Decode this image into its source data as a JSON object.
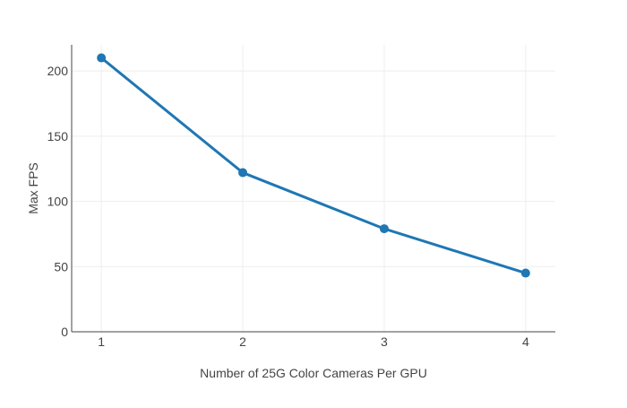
{
  "chart_data": {
    "type": "line",
    "title": "",
    "xlabel": "Number of 25G Color Cameras Per GPU",
    "ylabel": "Max FPS",
    "x": [
      1,
      2,
      3,
      4
    ],
    "series": [
      {
        "values": [
          210,
          122,
          79,
          45
        ]
      }
    ],
    "x_ticks": [
      "1",
      "2",
      "3",
      "4"
    ],
    "y_ticks": [
      "0",
      "50",
      "100",
      "150",
      "200"
    ],
    "xlim": [
      0.79,
      4.21
    ],
    "ylim": [
      0,
      220
    ],
    "grid": true,
    "legend": "none",
    "colors": {
      "line": "#1f77b4",
      "grid": "#eeeeee",
      "axis": "#444444"
    }
  }
}
